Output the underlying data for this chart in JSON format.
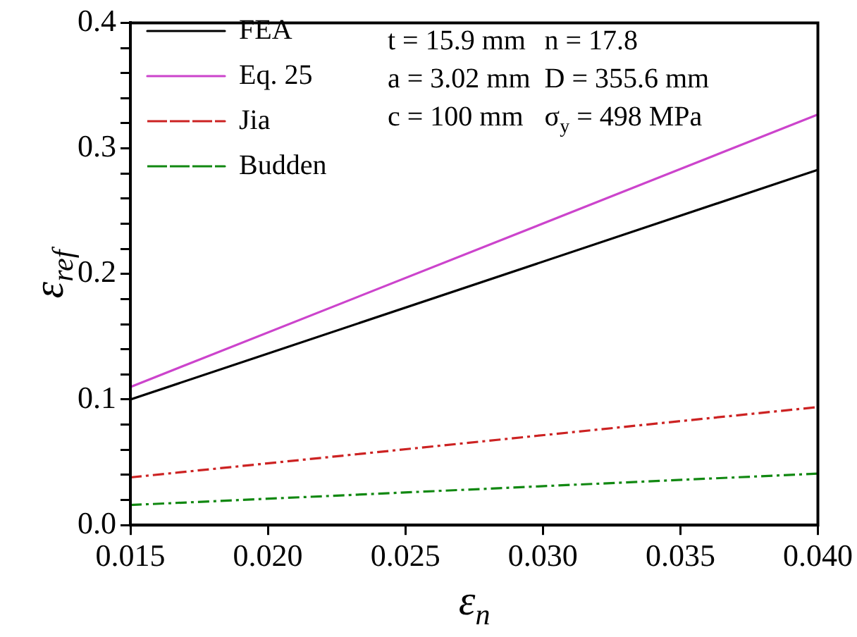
{
  "chart_data": {
    "type": "line",
    "xlabel": "ε$_{n}$",
    "ylabel": "ε$_{ref}$",
    "x": [
      0.015,
      0.04
    ],
    "series": [
      {
        "name": "FEA",
        "color": "#000000",
        "values": [
          0.1,
          0.283
        ],
        "line_style": "solid"
      },
      {
        "name": "Eq. 25",
        "color": "#cc44cc",
        "values": [
          0.11,
          0.327
        ],
        "line_style": "solid"
      },
      {
        "name": "Jia",
        "color": "#cc2222",
        "values": [
          0.038,
          0.094
        ],
        "line_style": "dashdot"
      },
      {
        "name": "Budden",
        "color": "#118811",
        "values": [
          0.016,
          0.041
        ],
        "line_style": "dashdot"
      }
    ],
    "xlim": [
      0.015,
      0.04
    ],
    "xticks": [
      {
        "value": 0.015,
        "label": "0.015"
      },
      {
        "value": 0.02,
        "label": "0.020"
      },
      {
        "value": 0.025,
        "label": "0.025"
      },
      {
        "value": 0.03,
        "label": "0.030"
      },
      {
        "value": 0.035,
        "label": "0.035"
      },
      {
        "value": 0.04,
        "label": "0.040"
      }
    ],
    "ylim": [
      0,
      0.4
    ],
    "yticks": [
      {
        "value": 0,
        "label": "0.0"
      },
      {
        "value": 0.02,
        "label": null
      },
      {
        "value": 0.04,
        "label": null
      },
      {
        "value": 0.06,
        "label": null
      },
      {
        "value": 0.08,
        "label": null
      },
      0.1,
      {
        "value": 0.12,
        "label": null
      },
      {
        "value": 0.14,
        "label": null
      },
      {
        "value": 0.16,
        "label": null
      },
      {
        "value": 0.18,
        "label": null
      },
      0.2,
      {
        "value": 0.22,
        "label": null
      },
      {
        "value": 0.24,
        "label": null
      },
      {
        "value": 0.26,
        "label": null
      },
      {
        "value": 0.28,
        "label": null
      },
      0.3,
      {
        "value": 0.32,
        "label": null
      },
      {
        "value": 0.34,
        "label": null
      },
      {
        "value": 0.36,
        "label": null
      },
      {
        "value": 0.38,
        "label": null
      },
      0.4
    ],
    "annotations": [
      "t = 15.9 mm",
      "n = 17.8",
      "a = 3.02 mm",
      "D = 355.6 mm",
      "c = 100 mm",
      "σ$_{y}$ = 498 MPa"
    ],
    "legend": "top left",
    "marker": "none",
    "grid": false
  }
}
